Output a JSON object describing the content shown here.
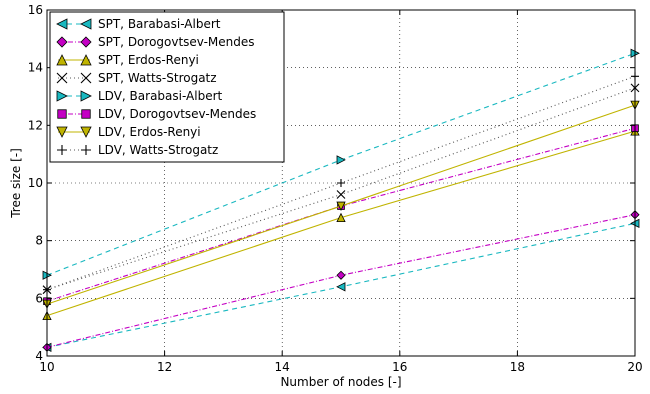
{
  "chart_data": {
    "type": "line",
    "xlabel": "Number of nodes [-]",
    "ylabel": "Tree size [-]",
    "xlim": [
      10,
      20
    ],
    "ylim": [
      4,
      16
    ],
    "xticks": [
      "10",
      "12",
      "14",
      "16",
      "18",
      "20"
    ],
    "yticks": [
      "4",
      "6",
      "8",
      "10",
      "12",
      "14",
      "16"
    ],
    "grid": true,
    "legend_position": "top-left",
    "series": [
      {
        "name": "SPT, Barabasi-Albert",
        "x": [
          10,
          15,
          20
        ],
        "y": [
          4.3,
          6.4,
          8.6
        ],
        "color": "#19b8c0",
        "marker": "triangle-left",
        "dash": "dashed"
      },
      {
        "name": "SPT, Dorogovtsev-Mendes",
        "x": [
          10,
          15,
          20
        ],
        "y": [
          4.3,
          6.8,
          8.9
        ],
        "color": "#c400c4",
        "marker": "diamond",
        "dash": "dashdot"
      },
      {
        "name": "SPT, Erdos-Renyi",
        "x": [
          10,
          15,
          20
        ],
        "y": [
          5.4,
          8.8,
          11.8
        ],
        "color": "#c0b400",
        "marker": "triangle-up",
        "dash": "solid"
      },
      {
        "name": "SPT, Watts-Strogatz",
        "x": [
          10,
          15,
          20
        ],
        "y": [
          6.3,
          9.6,
          13.3
        ],
        "color": "#555555",
        "marker": "x",
        "dash": "dotted"
      },
      {
        "name": "LDV, Barabasi-Albert",
        "x": [
          10,
          15,
          20
        ],
        "y": [
          6.8,
          10.8,
          14.5
        ],
        "color": "#19b8c0",
        "marker": "triangle-right",
        "dash": "dashed"
      },
      {
        "name": "LDV, Dorogovtsev-Mendes",
        "x": [
          10,
          15,
          20
        ],
        "y": [
          5.9,
          9.2,
          11.9
        ],
        "color": "#c400c4",
        "marker": "square",
        "dash": "dashdot"
      },
      {
        "name": "LDV, Erdos-Renyi",
        "x": [
          10,
          15,
          20
        ],
        "y": [
          5.8,
          9.2,
          12.7
        ],
        "color": "#c0b400",
        "marker": "triangle-down",
        "dash": "solid"
      },
      {
        "name": "LDV, Watts-Strogatz",
        "x": [
          10,
          15,
          20
        ],
        "y": [
          6.3,
          10.0,
          13.7
        ],
        "color": "#555555",
        "marker": "plus",
        "dash": "dotted"
      }
    ]
  }
}
